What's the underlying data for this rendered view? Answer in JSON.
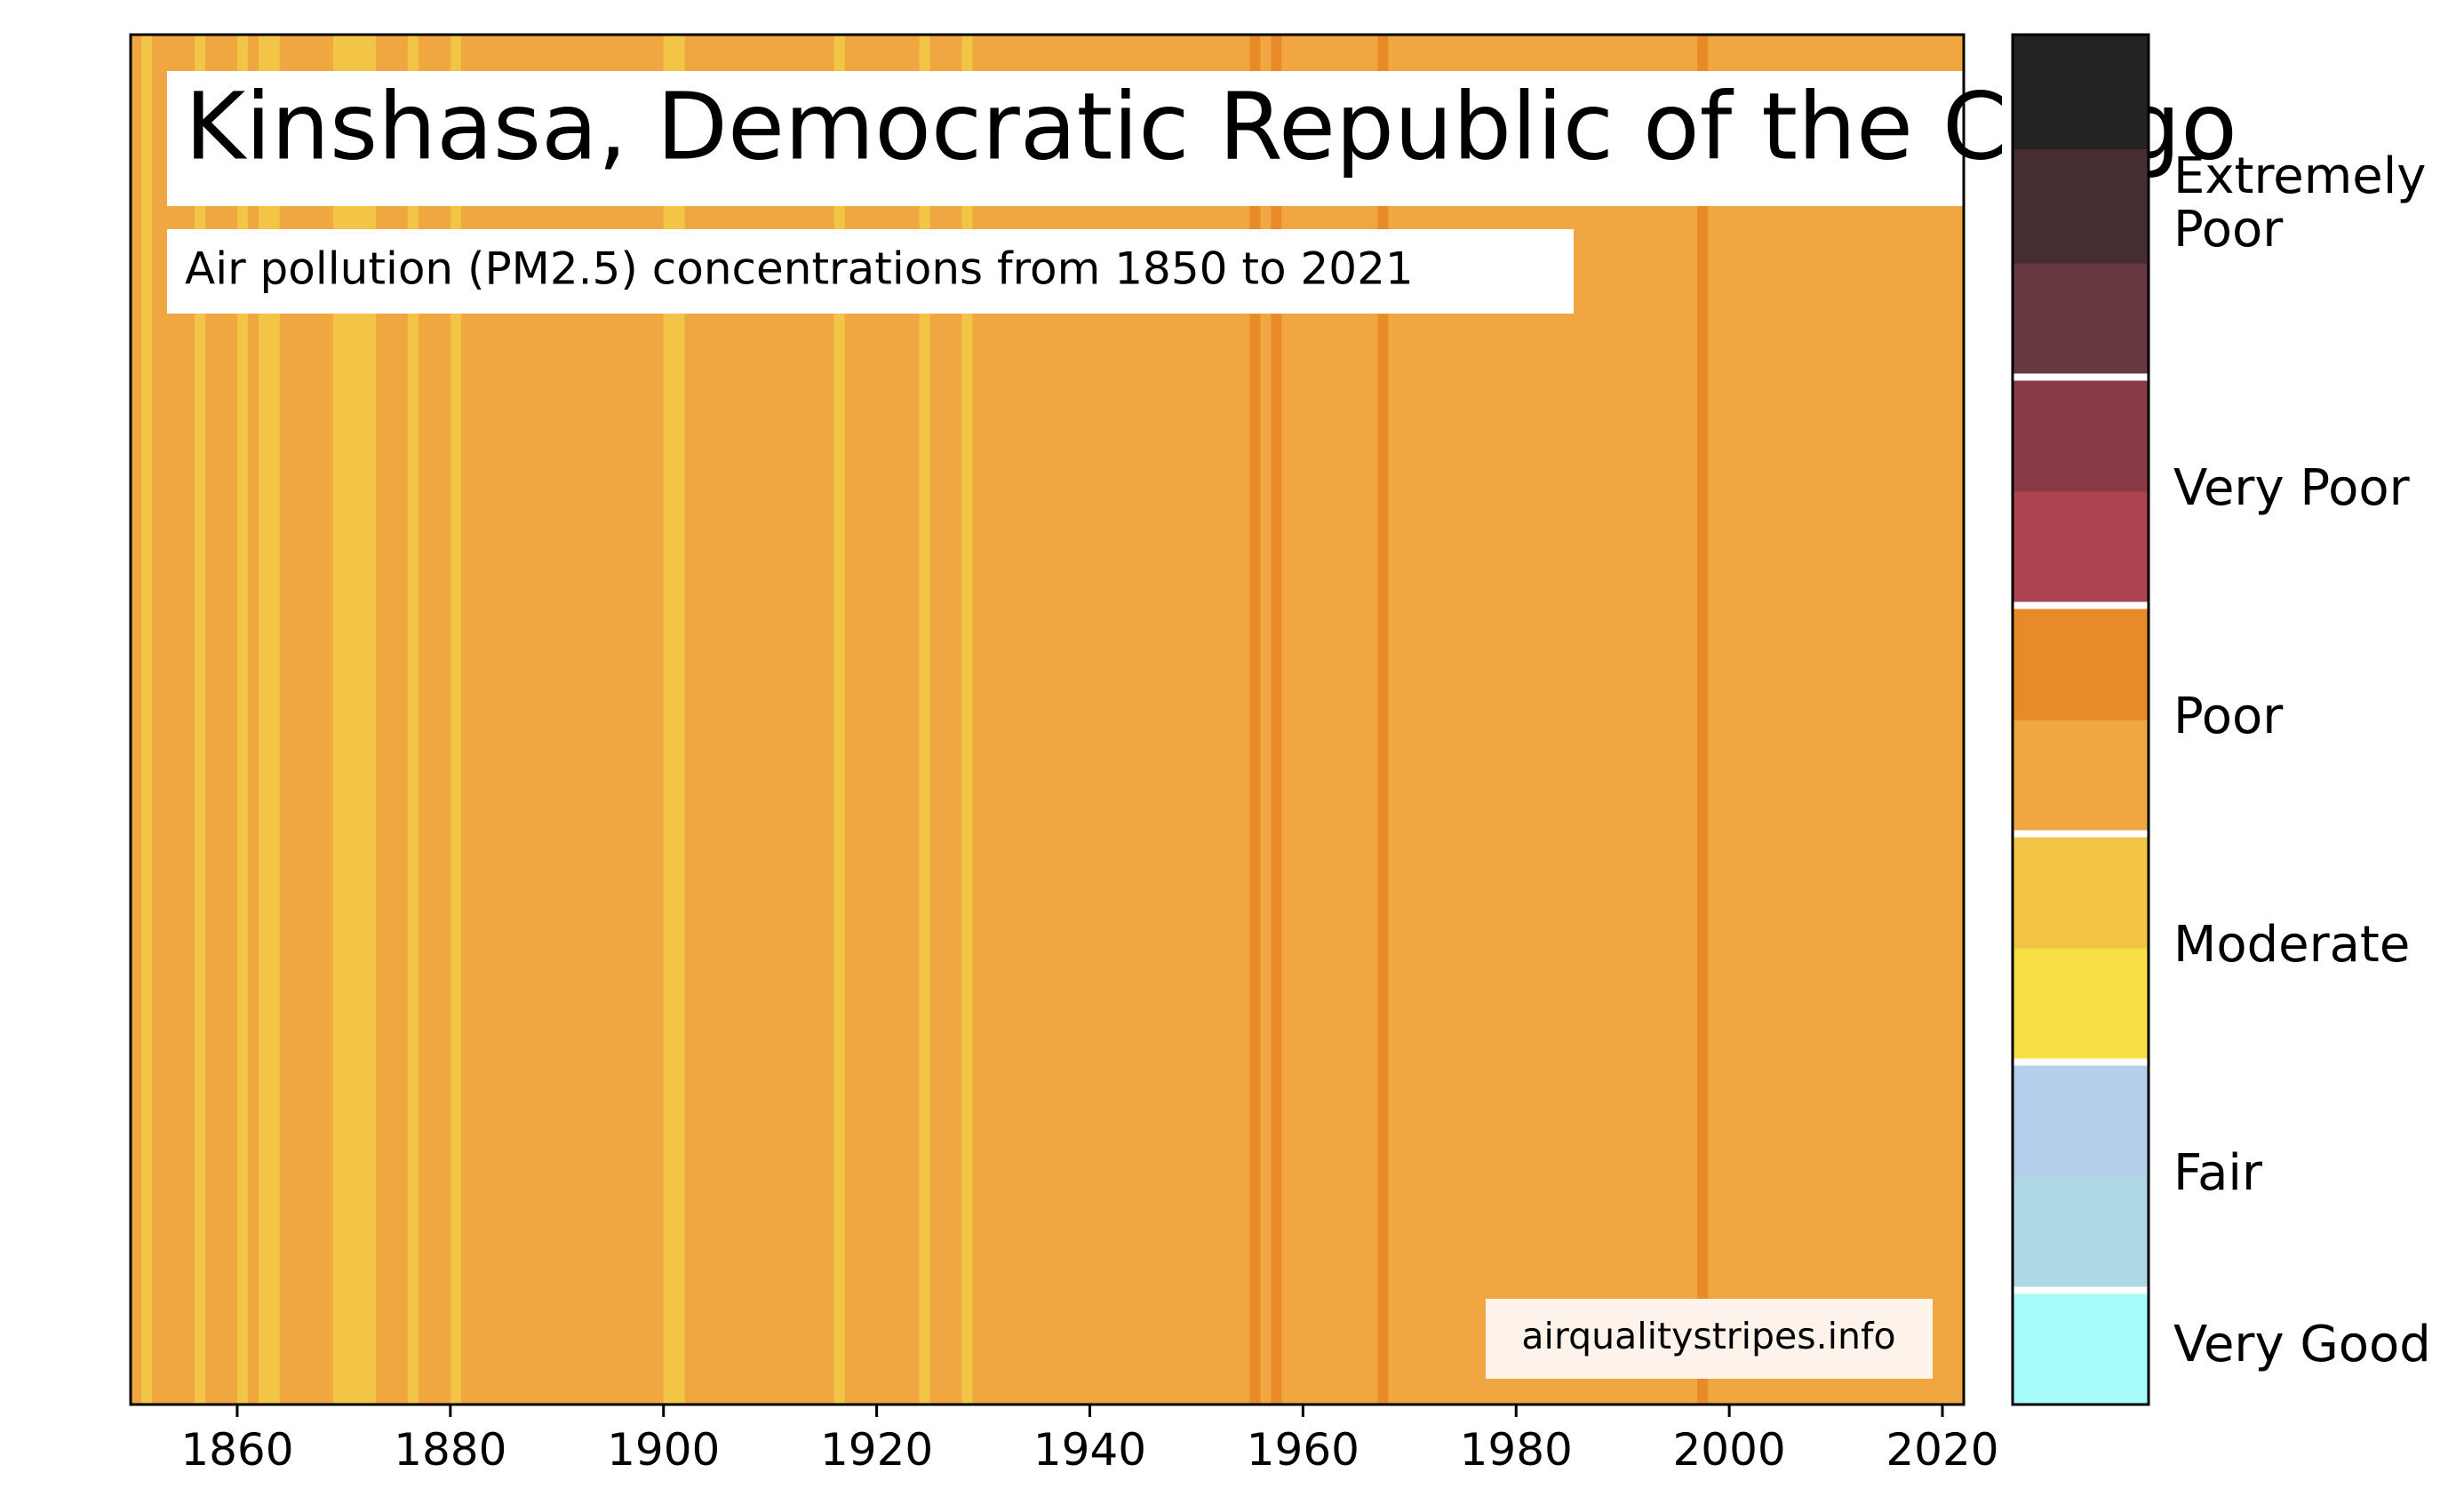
{
  "chart_data": {
    "type": "heatmap",
    "title": "Kinshasa, Democratic Republic of the Congo",
    "subtitle": "Air pollution (PM2.5) concentrations from 1850 to 2021",
    "watermark": "airqualitystripes.info",
    "x_range": [
      1850,
      2022
    ],
    "x_ticks": [
      "1860",
      "1880",
      "1900",
      "1920",
      "1940",
      "1960",
      "1980",
      "2000",
      "2020"
    ],
    "colors": {
      "poor_light": "#f0a641",
      "poor_dark": "#e88a27",
      "moderate": "#f3c546"
    },
    "stripes": [
      {
        "from": 1850,
        "to": 1851,
        "level": "poor_light"
      },
      {
        "from": 1851,
        "to": 1852,
        "level": "moderate"
      },
      {
        "from": 1852,
        "to": 1856,
        "level": "poor_light"
      },
      {
        "from": 1856,
        "to": 1857,
        "level": "moderate"
      },
      {
        "from": 1857,
        "to": 1860,
        "level": "poor_light"
      },
      {
        "from": 1860,
        "to": 1861,
        "level": "moderate"
      },
      {
        "from": 1861,
        "to": 1862,
        "level": "poor_light"
      },
      {
        "from": 1862,
        "to": 1864,
        "level": "moderate"
      },
      {
        "from": 1864,
        "to": 1869,
        "level": "poor_light"
      },
      {
        "from": 1869,
        "to": 1873,
        "level": "moderate"
      },
      {
        "from": 1873,
        "to": 1876,
        "level": "poor_light"
      },
      {
        "from": 1876,
        "to": 1877,
        "level": "moderate"
      },
      {
        "from": 1877,
        "to": 1880,
        "level": "poor_light"
      },
      {
        "from": 1880,
        "to": 1881,
        "level": "moderate"
      },
      {
        "from": 1881,
        "to": 1900,
        "level": "poor_light"
      },
      {
        "from": 1900,
        "to": 1902,
        "level": "moderate"
      },
      {
        "from": 1902,
        "to": 1916,
        "level": "poor_light"
      },
      {
        "from": 1916,
        "to": 1917,
        "level": "moderate"
      },
      {
        "from": 1917,
        "to": 1924,
        "level": "poor_light"
      },
      {
        "from": 1924,
        "to": 1925,
        "level": "moderate"
      },
      {
        "from": 1925,
        "to": 1928,
        "level": "poor_light"
      },
      {
        "from": 1928,
        "to": 1929,
        "level": "moderate"
      },
      {
        "from": 1929,
        "to": 1955,
        "level": "poor_light"
      },
      {
        "from": 1955,
        "to": 1956,
        "level": "poor_dark"
      },
      {
        "from": 1956,
        "to": 1957,
        "level": "poor_light"
      },
      {
        "from": 1957,
        "to": 1958,
        "level": "poor_dark"
      },
      {
        "from": 1958,
        "to": 1967,
        "level": "poor_light"
      },
      {
        "from": 1967,
        "to": 1968,
        "level": "poor_dark"
      },
      {
        "from": 1968,
        "to": 1997,
        "level": "poor_light"
      },
      {
        "from": 1997,
        "to": 1998,
        "level": "poor_dark"
      },
      {
        "from": 1998,
        "to": 2022,
        "level": "poor_light"
      }
    ],
    "legend": {
      "swatches": [
        "#a5fcfb",
        "#add8e6",
        "#b3cfec",
        "#f6e045",
        "#f3c546",
        "#f0a641",
        "#e88a27",
        "#ad4550",
        "#8a3a47",
        "#683841",
        "#462d31",
        "#232323"
      ],
      "labels": [
        {
          "text": "Very Good",
          "pos": 0.5
        },
        {
          "text": "Fair",
          "pos": 2.0
        },
        {
          "text": "Moderate",
          "pos": 4.0
        },
        {
          "text": "Poor",
          "pos": 6.0
        },
        {
          "text": "Very Poor",
          "pos": 8.0
        },
        {
          "text": "Extremely\nPoor",
          "pos": 10.5
        }
      ],
      "dividers": [
        1,
        3,
        5,
        7,
        9
      ]
    }
  }
}
